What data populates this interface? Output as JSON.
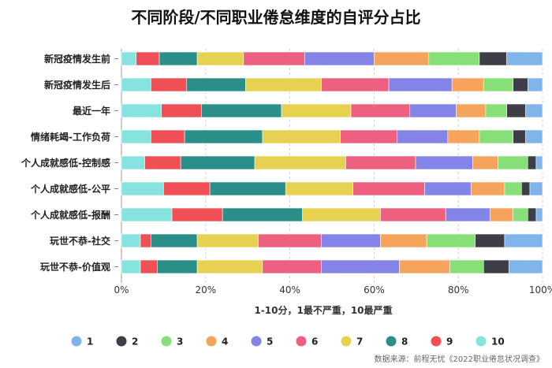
{
  "chart_data": {
    "type": "bar",
    "orientation": "horizontal",
    "stacked": "percent",
    "title": "不同阶段/不同职业倦怠维度的自评分占比",
    "xlabel": "1-10分，1最不严重，10最严重",
    "source": "数据来源：前程无忧《2022职业倦怠状况调查》",
    "xlim": [
      0,
      100
    ],
    "x_ticks": [
      "0%",
      "20%",
      "40%",
      "60%",
      "80%",
      "100%"
    ],
    "grid": "vertical-dashed",
    "legend_position": "bottom",
    "categories": [
      "新冠疫情发生前",
      "新冠疫情发生后",
      "最近一年",
      "情绪耗竭-工作负荷",
      "个人成就感低-控制感",
      "个人成就感低-公平",
      "个人成就感低-报酬",
      "玩世不恭-社交",
      "玩世不恭-价值观"
    ],
    "series": [
      {
        "name": "10",
        "color": "#86E3DE",
        "values": [
          3.5,
          7,
          9.5,
          7,
          5.5,
          10,
          12,
          4.5,
          4.5
        ]
      },
      {
        "name": "9",
        "color": "#EE5056",
        "values": [
          5.5,
          8.5,
          9.5,
          8,
          8.5,
          11,
          12,
          2.5,
          4
        ]
      },
      {
        "name": "8",
        "color": "#2A8F88",
        "values": [
          9,
          14,
          19,
          18.5,
          17.5,
          18,
          19,
          11,
          9.5
        ]
      },
      {
        "name": "7",
        "color": "#E6D150",
        "values": [
          11,
          18,
          16.5,
          18.5,
          21.5,
          16,
          18.5,
          14.5,
          15.5
        ]
      },
      {
        "name": "6",
        "color": "#EE607F",
        "values": [
          14.5,
          16,
          14,
          13.5,
          16.5,
          17,
          15.5,
          15,
          14
        ]
      },
      {
        "name": "5",
        "color": "#8383E8",
        "values": [
          16.5,
          15,
          11,
          12,
          13.5,
          11,
          10.5,
          14,
          18.5
        ]
      },
      {
        "name": "4",
        "color": "#F6A35C",
        "values": [
          13,
          7.5,
          7,
          7.5,
          6,
          8,
          5.5,
          11,
          12
        ]
      },
      {
        "name": "3",
        "color": "#86E077",
        "values": [
          12,
          7,
          5,
          8,
          7,
          4,
          3.5,
          11.5,
          8
        ]
      },
      {
        "name": "2",
        "color": "#3E3E46",
        "values": [
          6.5,
          3.5,
          4.5,
          3,
          2,
          2,
          2,
          7,
          6
        ]
      },
      {
        "name": "1",
        "color": "#80B5EC",
        "values": [
          8.5,
          3.5,
          4,
          4,
          1.5,
          3,
          1.5,
          9,
          8
        ]
      }
    ],
    "legend": [
      {
        "name": "1",
        "color": "#80B5EC"
      },
      {
        "name": "2",
        "color": "#3E3E46"
      },
      {
        "name": "3",
        "color": "#86E077"
      },
      {
        "name": "4",
        "color": "#F6A35C"
      },
      {
        "name": "5",
        "color": "#8383E8"
      },
      {
        "name": "6",
        "color": "#EE607F"
      },
      {
        "name": "7",
        "color": "#E6D150"
      },
      {
        "name": "8",
        "color": "#2A8F88"
      },
      {
        "name": "9",
        "color": "#EE5056"
      },
      {
        "name": "10",
        "color": "#86E3DE"
      }
    ]
  }
}
